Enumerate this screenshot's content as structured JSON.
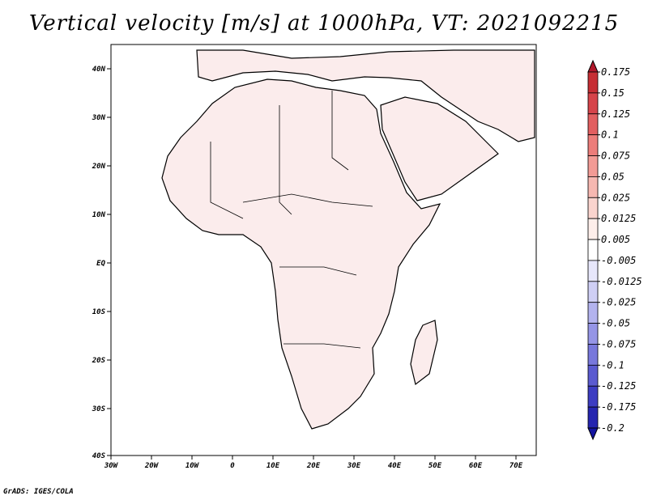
{
  "title": "Vertical velocity [m/s] at 1000hPa, VT: 2021092215",
  "footer": "GrADS: IGES/COLA",
  "map": {
    "lon_labels": [
      "30W",
      "20W",
      "10W",
      "0",
      "10E",
      "20E",
      "30E",
      "40E",
      "50E",
      "60E",
      "70E"
    ],
    "lat_labels": [
      "40N",
      "30N",
      "20N",
      "10N",
      "EQ",
      "10S",
      "20S",
      "30S",
      "40S"
    ],
    "lon_range": [
      -30,
      75
    ],
    "lat_range": [
      -40,
      45
    ]
  },
  "colorbar": {
    "labels": [
      "0.175",
      "0.15",
      "0.125",
      "0.1",
      "0.075",
      "0.05",
      "0.025",
      "0.0125",
      "0.005",
      "-0.005",
      "-0.0125",
      "-0.025",
      "-0.05",
      "-0.075",
      "-0.1",
      "-0.125",
      "-0.175",
      "-0.2"
    ],
    "colors": [
      "#b2182b",
      "#c62e34",
      "#d6444a",
      "#e25f60",
      "#ec7d7a",
      "#f29b95",
      "#f6b8b1",
      "#fad4ce",
      "#fdeeea",
      "#ffffff",
      "#e7e7fb",
      "#cfcff5",
      "#b3b3ee",
      "#9595e6",
      "#7878dc",
      "#5a5ad0",
      "#3c3cc2",
      "#2525b0",
      "#1414a0"
    ]
  }
}
